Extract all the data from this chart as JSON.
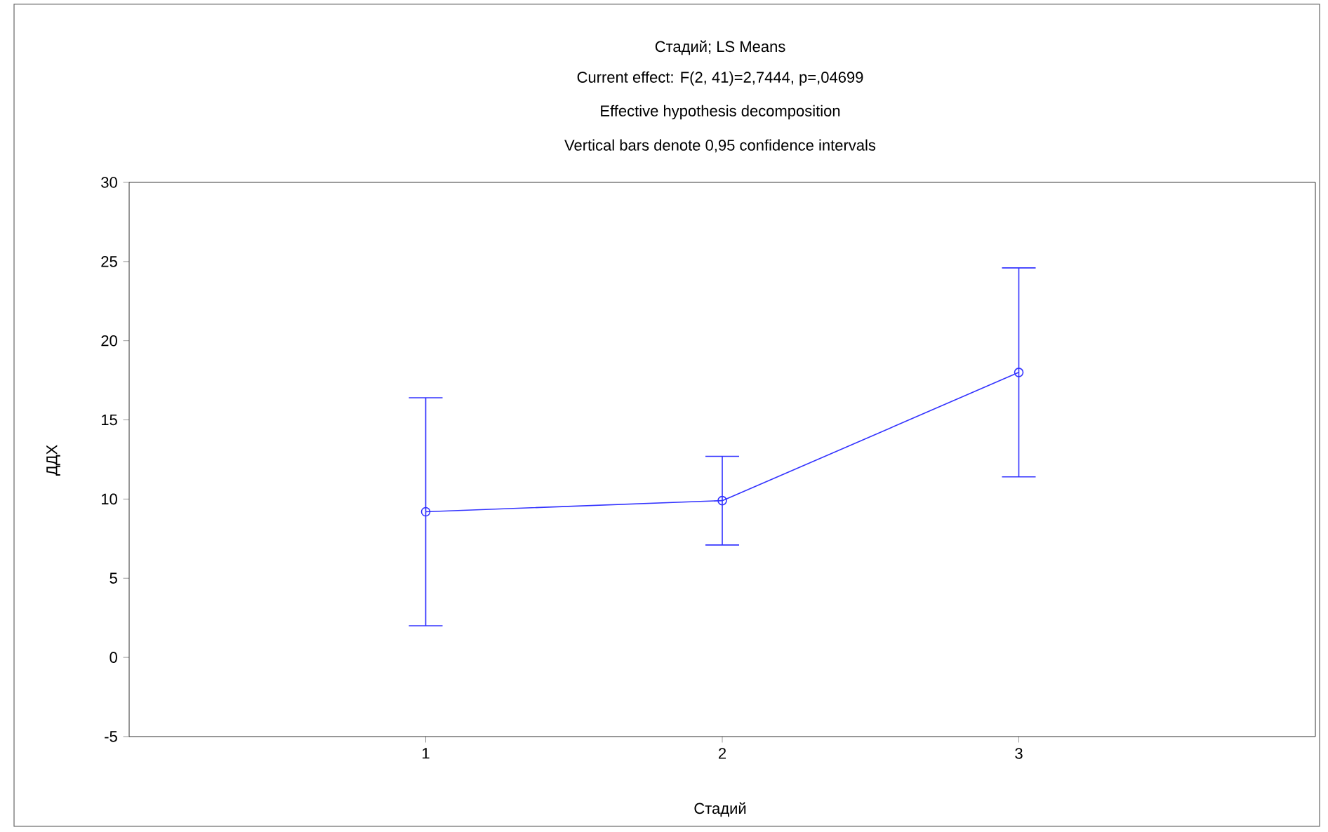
{
  "chart_data": {
    "type": "line",
    "title": "Стадий; LS Means",
    "subtitle": "Current effect: F(2, 41)=2,7444, p=,04699",
    "annotations": [
      "Effective hypothesis decomposition",
      "Vertical bars denote 0,95 confidence intervals"
    ],
    "xlabel": "Стадий",
    "ylabel": "ДДХ",
    "categories": [
      "1",
      "2",
      "3"
    ],
    "series": [
      {
        "color": "#3333ff",
        "values": [
          9.2,
          9.9,
          18.0
        ],
        "errors": [
          7.2,
          2.8,
          6.6
        ]
      }
    ],
    "ylim": [
      -5,
      30
    ],
    "yticks": [
      -5,
      0,
      5,
      10,
      15,
      20,
      25,
      30
    ],
    "marker": "circle",
    "line_style": "solid",
    "grid": false
  }
}
